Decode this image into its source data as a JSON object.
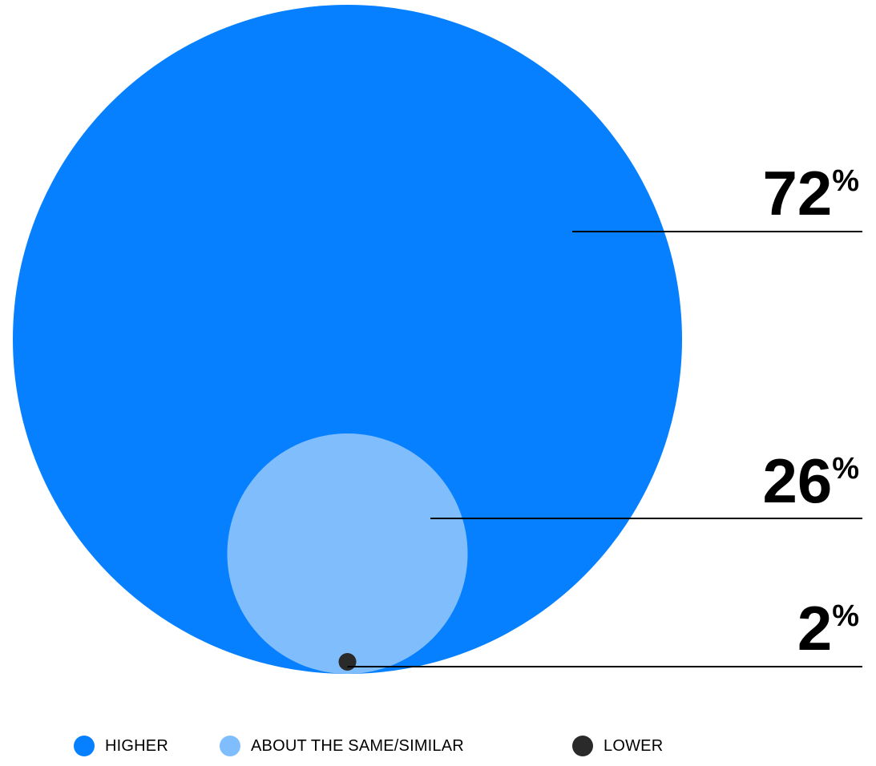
{
  "chart_data": {
    "type": "nested-bubble",
    "series": [
      {
        "name": "HIGHER",
        "value": 72,
        "label": "72",
        "unit": "%",
        "color": "#0680FF"
      },
      {
        "name": "ABOUT THE SAME/SIMILAR",
        "value": 26,
        "label": "26",
        "unit": "%",
        "color": "#80BDFC"
      },
      {
        "name": "LOWER",
        "value": 2,
        "label": "2",
        "unit": "%",
        "color": "#2A2A2A"
      }
    ],
    "legend_position": "bottom",
    "title": "",
    "subtitle": ""
  }
}
